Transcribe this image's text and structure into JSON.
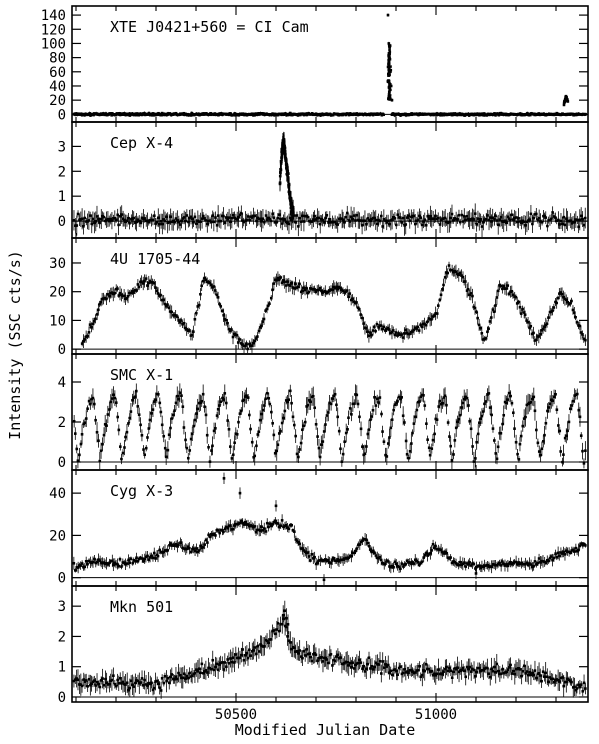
{
  "chart_data": {
    "type": "scatter",
    "xlabel": "Modified Julian Date",
    "ylabel": "Intensity (SSC cts/s)",
    "xlim": [
      50090,
      51380
    ],
    "x_ticks": [
      50500,
      51000
    ],
    "grid": false,
    "panels": [
      {
        "title": "XTE J0421+560 = CI Cam",
        "ylim": [
          -8,
          150
        ],
        "y_ticks": [
          0,
          20,
          40,
          60,
          80,
          100,
          120,
          140
        ],
        "baseline": 0,
        "noise": 1.5,
        "segments": [
          [
            50095,
            50870
          ],
          [
            50890,
            51375
          ]
        ],
        "features": [
          {
            "type": "flare",
            "x": [
              50880,
              50882,
              50884,
              50886,
              50888,
              50890
            ],
            "y": [
              140,
              100,
              80,
              60,
              40,
              20
            ]
          },
          {
            "type": "bump",
            "x": [
              51320,
              51325,
              51330
            ],
            "y": [
              15,
              25,
              18
            ]
          }
        ]
      },
      {
        "title": "Cep X-4",
        "ylim": [
          -0.6,
          3.9
        ],
        "y_ticks": [
          0,
          1,
          2,
          3
        ],
        "baseline": 0.05,
        "noise": 0.25,
        "segments": [
          [
            50095,
            51375
          ]
        ],
        "features": [
          {
            "type": "outburst",
            "x": [
              50610,
              50614,
              50618,
              50622,
              50626,
              50630,
              50636,
              50644
            ],
            "y": [
              1.5,
              2.7,
              3.2,
              2.9,
              2.2,
              1.8,
              0.8,
              0.3
            ]
          }
        ]
      },
      {
        "title": "4U 1705-44",
        "ylim": [
          -1,
          38
        ],
        "y_ticks": [
          0,
          10,
          20,
          30
        ],
        "baseline": 0,
        "noise": 1.5,
        "segments": [
          [
            50115,
            51375
          ]
        ],
        "curve": [
          [
            50115,
            2
          ],
          [
            50140,
            8
          ],
          [
            50170,
            18
          ],
          [
            50200,
            20
          ],
          [
            50230,
            18
          ],
          [
            50260,
            23
          ],
          [
            50290,
            24
          ],
          [
            50320,
            16
          ],
          [
            50360,
            10
          ],
          [
            50390,
            5
          ],
          [
            50420,
            25
          ],
          [
            50450,
            20
          ],
          [
            50480,
            8
          ],
          [
            50510,
            2
          ],
          [
            50540,
            1
          ],
          [
            50570,
            10
          ],
          [
            50600,
            25
          ],
          [
            50640,
            22
          ],
          [
            50680,
            21
          ],
          [
            50720,
            20
          ],
          [
            50760,
            22
          ],
          [
            50800,
            16
          ],
          [
            50830,
            5
          ],
          [
            50860,
            8
          ],
          [
            50890,
            6
          ],
          [
            50920,
            5
          ],
          [
            50960,
            8
          ],
          [
            51000,
            12
          ],
          [
            51030,
            28
          ],
          [
            51060,
            26
          ],
          [
            51090,
            18
          ],
          [
            51120,
            2
          ],
          [
            51160,
            22
          ],
          [
            51190,
            20
          ],
          [
            51220,
            12
          ],
          [
            51250,
            3
          ],
          [
            51280,
            10
          ],
          [
            51310,
            20
          ],
          [
            51340,
            15
          ],
          [
            51375,
            2
          ]
        ]
      },
      {
        "title": "SMC X-1",
        "ylim": [
          -0.3,
          5.3
        ],
        "y_ticks": [
          0,
          2,
          4
        ],
        "baseline": 0,
        "noise": 0.3,
        "segments": [
          [
            50095,
            51375
          ]
        ],
        "periodic": {
          "period": 55,
          "low": 0.1,
          "high": 3.3
        }
      },
      {
        "title": "Cyg X-3",
        "ylim": [
          -3,
          50
        ],
        "y_ticks": [
          0,
          20,
          40
        ],
        "baseline": 0,
        "noise": 1.8,
        "segments": [
          [
            50095,
            51375
          ]
        ],
        "curve": [
          [
            50095,
            5
          ],
          [
            50150,
            8
          ],
          [
            50200,
            6
          ],
          [
            50250,
            8
          ],
          [
            50300,
            10
          ],
          [
            50350,
            16
          ],
          [
            50400,
            12
          ],
          [
            50440,
            20
          ],
          [
            50480,
            24
          ],
          [
            50520,
            26
          ],
          [
            50560,
            22
          ],
          [
            50600,
            26
          ],
          [
            50640,
            24
          ],
          [
            50660,
            14
          ],
          [
            50700,
            8
          ],
          [
            50740,
            8
          ],
          [
            50780,
            9
          ],
          [
            50820,
            18
          ],
          [
            50850,
            10
          ],
          [
            50880,
            6
          ],
          [
            50920,
            6
          ],
          [
            50960,
            8
          ],
          [
            51000,
            15
          ],
          [
            51040,
            8
          ],
          [
            51080,
            6
          ],
          [
            51120,
            5
          ],
          [
            51160,
            6
          ],
          [
            51200,
            7
          ],
          [
            51240,
            6
          ],
          [
            51280,
            8
          ],
          [
            51320,
            12
          ],
          [
            51375,
            16
          ]
        ],
        "features": [
          {
            "type": "points",
            "x": [
              50470,
              50510,
              50600,
              50720,
              51100
            ],
            "y": [
              47,
              40,
              34,
              -1,
              2
            ]
          }
        ]
      },
      {
        "title": "Mkn 501",
        "ylim": [
          -0.1,
          3.6
        ],
        "y_ticks": [
          0,
          1,
          2,
          3
        ],
        "baseline": 0,
        "noise": 0.22,
        "segments": [
          [
            50095,
            51375
          ]
        ],
        "curve": [
          [
            50095,
            0.5
          ],
          [
            50200,
            0.5
          ],
          [
            50300,
            0.4
          ],
          [
            50400,
            0.8
          ],
          [
            50500,
            1.2
          ],
          [
            50560,
            1.6
          ],
          [
            50600,
            2.2
          ],
          [
            50620,
            2.5
          ],
          [
            50640,
            1.6
          ],
          [
            50700,
            1.3
          ],
          [
            50800,
            1.1
          ],
          [
            50900,
            0.9
          ],
          [
            51000,
            0.8
          ],
          [
            51100,
            0.9
          ],
          [
            51200,
            0.9
          ],
          [
            51300,
            0.6
          ],
          [
            51375,
            0.3
          ]
        ],
        "features": [
          {
            "type": "points",
            "x": [
              50618,
              50622,
              50626,
              50630
            ],
            "y": [
              2.7,
              2.85,
              2.6,
              2.4
            ]
          }
        ]
      }
    ]
  }
}
